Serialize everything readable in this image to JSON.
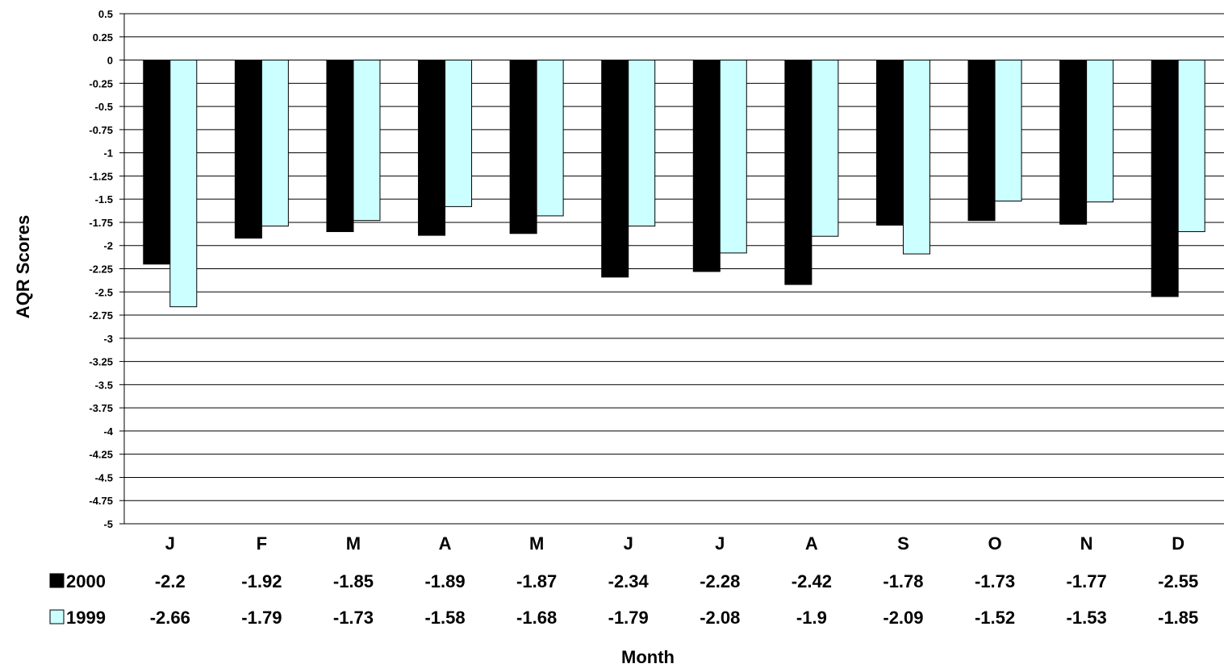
{
  "chart_data": {
    "type": "bar",
    "title": "",
    "xlabel": "Month",
    "ylabel": "AQR Scores",
    "ylim": [
      -5,
      0.5
    ],
    "ytick_step": 0.25,
    "yticks": [
      "0.5",
      "0.25",
      "0",
      "-0.25",
      "-0.5",
      "-0.75",
      "-1",
      "-1.25",
      "-1.5",
      "-1.75",
      "-2",
      "-2.25",
      "-2.5",
      "-2.75",
      "-3",
      "-3.25",
      "-3.5",
      "-3.75",
      "-4",
      "-4.25",
      "-4.5",
      "-4.75",
      "-5"
    ],
    "grid": true,
    "legend": "data-table-left",
    "categories": [
      "J",
      "F",
      "M",
      "A",
      "M",
      "J",
      "J",
      "A",
      "S",
      "O",
      "N",
      "D"
    ],
    "series": [
      {
        "name": "2000",
        "color": "#000000",
        "values": [
          -2.2,
          -1.92,
          -1.85,
          -1.89,
          -1.87,
          -2.34,
          -2.28,
          -2.42,
          -1.78,
          -1.73,
          -1.77,
          -2.55
        ],
        "labels": [
          "-2.2",
          "-1.92",
          "-1.85",
          "-1.89",
          "-1.87",
          "-2.34",
          "-2.28",
          "-2.42",
          "-1.78",
          "-1.73",
          "-1.77",
          "-2.55"
        ]
      },
      {
        "name": "1999",
        "color": "#ccffff",
        "values": [
          -2.66,
          -1.79,
          -1.73,
          -1.58,
          -1.68,
          -1.79,
          -2.08,
          -1.9,
          -2.09,
          -1.52,
          -1.53,
          -1.85
        ],
        "labels": [
          "-2.66",
          "-1.79",
          "-1.73",
          "-1.58",
          "-1.68",
          "-1.79",
          "-2.08",
          "-1.9",
          "-2.09",
          "-1.52",
          "-1.53",
          "-1.85"
        ]
      }
    ]
  }
}
